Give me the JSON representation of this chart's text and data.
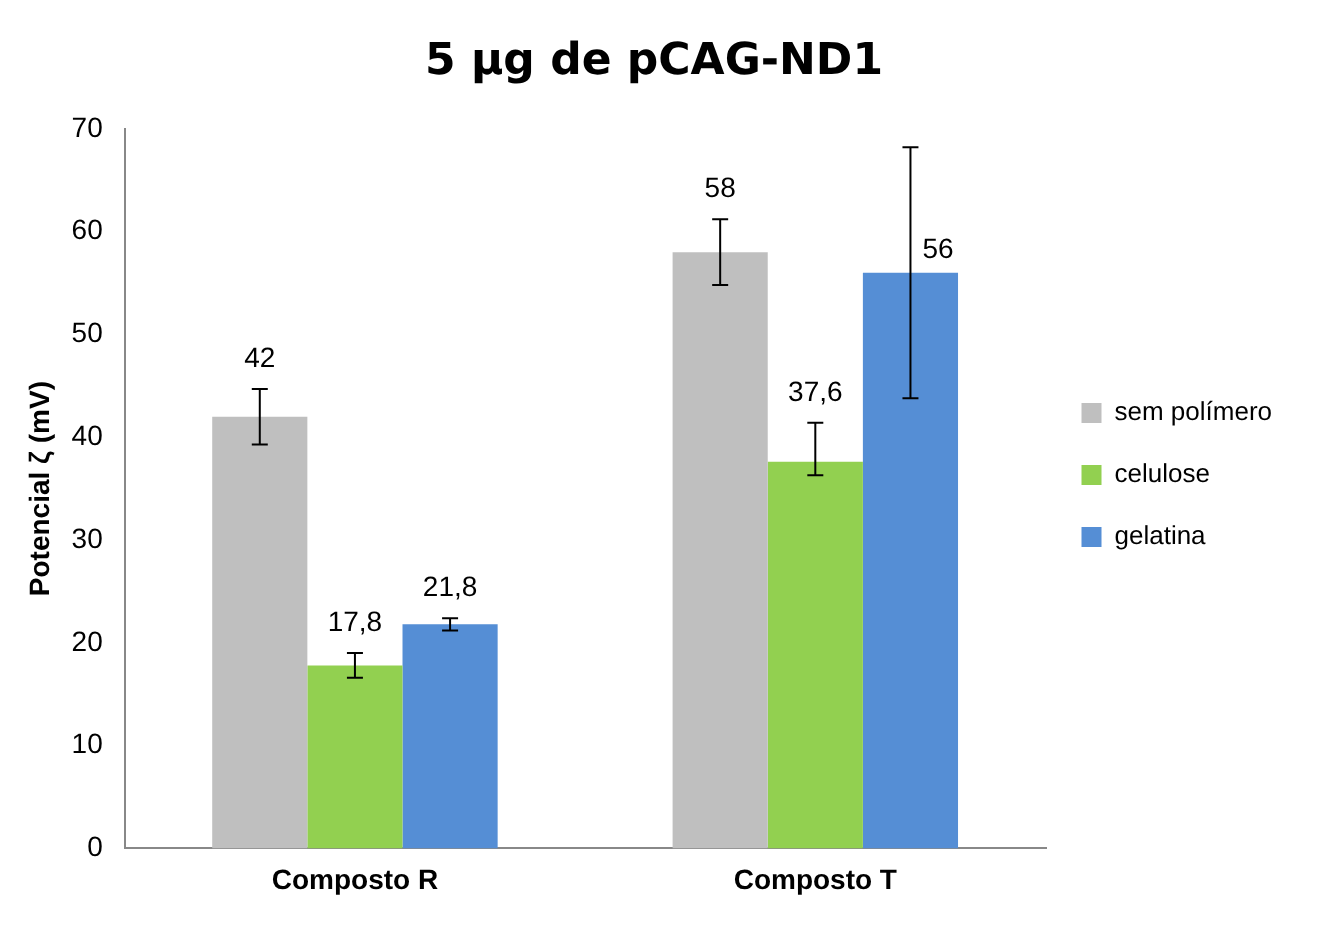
{
  "chart_data": {
    "type": "bar",
    "title": "5 µg de pCAG-ND1",
    "ylabel": "Potencial ζ (mV)",
    "categories": [
      "Composto R",
      "Composto T"
    ],
    "series": [
      {
        "name": "sem polímero",
        "color": "#bfbfbf",
        "values": [
          42,
          58
        ],
        "errors": [
          2.7,
          3.2
        ],
        "value_labels": [
          "42",
          "58"
        ]
      },
      {
        "name": "celulose",
        "color": "#92d050",
        "values": [
          17.8,
          37.6
        ],
        "errors": [
          1.2,
          [
            36.3,
            41.4
          ]
        ],
        "value_labels": [
          "17,8",
          "37,6"
        ]
      },
      {
        "name": "gelatina",
        "color": "#558ed5",
        "values": [
          21.8,
          56
        ],
        "errors": [
          0.6,
          [
            43.8,
            68.2
          ]
        ],
        "value_labels": [
          "21,8",
          "56"
        ]
      }
    ],
    "ylim": [
      0,
      70
    ],
    "yticks": [
      0,
      10,
      20,
      30,
      40,
      50,
      60,
      70
    ],
    "grid": false,
    "legend": "right"
  }
}
